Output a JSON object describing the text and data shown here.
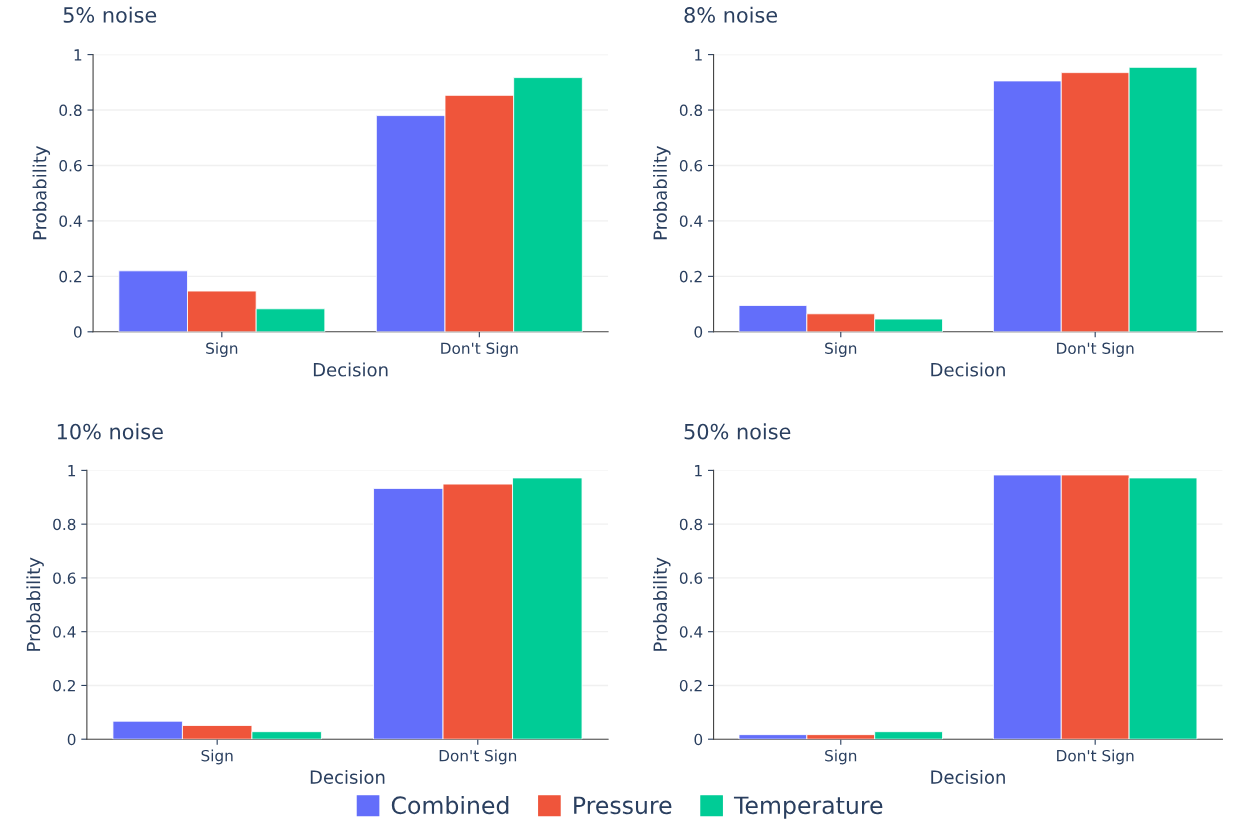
{
  "chart_data": [
    {
      "type": "bar",
      "title": "5% noise",
      "xlabel": "Decision",
      "ylabel": "Probability",
      "categories": [
        "Sign",
        "Don't Sign"
      ],
      "ylim": [
        0,
        1
      ],
      "yticks": [
        0,
        0.2,
        0.4,
        0.6,
        0.8,
        1
      ],
      "grid": "y",
      "legend": "bottom",
      "series": [
        {
          "name": "Combined",
          "color": "#636efa",
          "values": [
            0.22,
            0.78
          ]
        },
        {
          "name": "Pressure",
          "color": "#ef553b",
          "values": [
            0.147,
            0.853
          ]
        },
        {
          "name": "Temperature",
          "color": "#00cc96",
          "values": [
            0.083,
            0.917
          ]
        }
      ]
    },
    {
      "type": "bar",
      "title": "8% noise",
      "xlabel": "Decision",
      "ylabel": "Probability",
      "categories": [
        "Sign",
        "Don't Sign"
      ],
      "ylim": [
        0,
        1
      ],
      "yticks": [
        0,
        0.2,
        0.4,
        0.6,
        0.8,
        1
      ],
      "grid": "y",
      "series": [
        {
          "color": "#636efa",
          "values": [
            0.095,
            0.905
          ]
        },
        {
          "color": "#ef553b",
          "values": [
            0.065,
            0.935
          ]
        },
        {
          "color": "#00cc96",
          "values": [
            0.046,
            0.954
          ]
        }
      ]
    },
    {
      "type": "bar",
      "title": "10% noise",
      "xlabel": "Decision",
      "ylabel": "Probability",
      "categories": [
        "Sign",
        "Don't Sign"
      ],
      "ylim": [
        0,
        1
      ],
      "yticks": [
        0,
        0.2,
        0.4,
        0.6,
        0.8,
        1
      ],
      "grid": "y",
      "series": [
        {
          "color": "#636efa",
          "values": [
            0.067,
            0.933
          ]
        },
        {
          "color": "#ef553b",
          "values": [
            0.051,
            0.949
          ]
        },
        {
          "color": "#00cc96",
          "values": [
            0.028,
            0.972
          ]
        }
      ]
    },
    {
      "type": "bar",
      "title": "50% noise",
      "xlabel": "Decision",
      "ylabel": "Probability",
      "categories": [
        "Sign",
        "Don't Sign"
      ],
      "ylim": [
        0,
        1
      ],
      "yticks": [
        0,
        0.2,
        0.4,
        0.6,
        0.8,
        1
      ],
      "grid": "y",
      "series": [
        {
          "color": "#636efa",
          "values": [
            0.017,
            0.983
          ]
        },
        {
          "color": "#ef553b",
          "values": [
            0.017,
            0.983
          ]
        },
        {
          "color": "#00cc96",
          "values": [
            0.028,
            0.972
          ]
        }
      ]
    }
  ]
}
